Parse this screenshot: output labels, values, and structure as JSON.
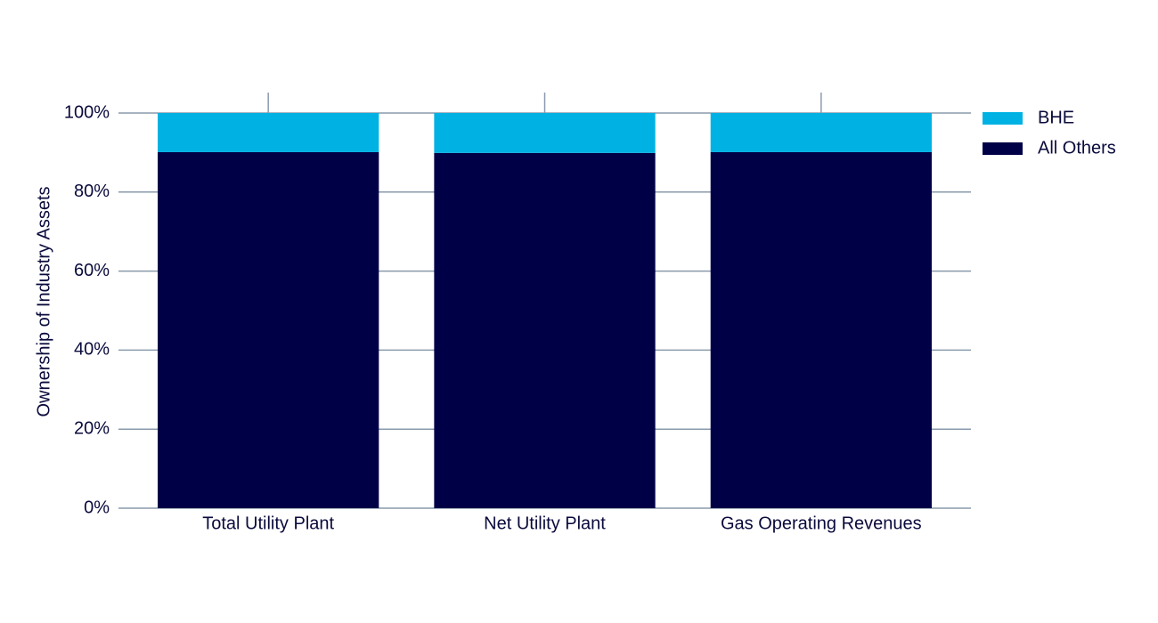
{
  "chart_data": {
    "type": "stacked-bar",
    "y_label": "Ownership of Industry Assets",
    "categories": [
      "Total Utility Plant",
      "Net Utility Plant",
      "Gas Operating Revenues"
    ],
    "series": [
      {
        "name": "BHE",
        "color": "#00b2e3",
        "values": [
          9.9,
          10.1,
          9.9
        ]
      },
      {
        "name": "All Others",
        "color": "#000046",
        "values": [
          90.1,
          89.9,
          90.1
        ]
      }
    ],
    "ylim": [
      0,
      100
    ],
    "yticks": [
      {
        "value": 0,
        "label": "0%"
      },
      {
        "value": 20,
        "label": "20%"
      },
      {
        "value": 40,
        "label": "40%"
      },
      {
        "value": 60,
        "label": "60%"
      },
      {
        "value": 80,
        "label": "80%"
      },
      {
        "value": 100,
        "label": "100%"
      }
    ],
    "grid": true,
    "legend": "top-right"
  }
}
